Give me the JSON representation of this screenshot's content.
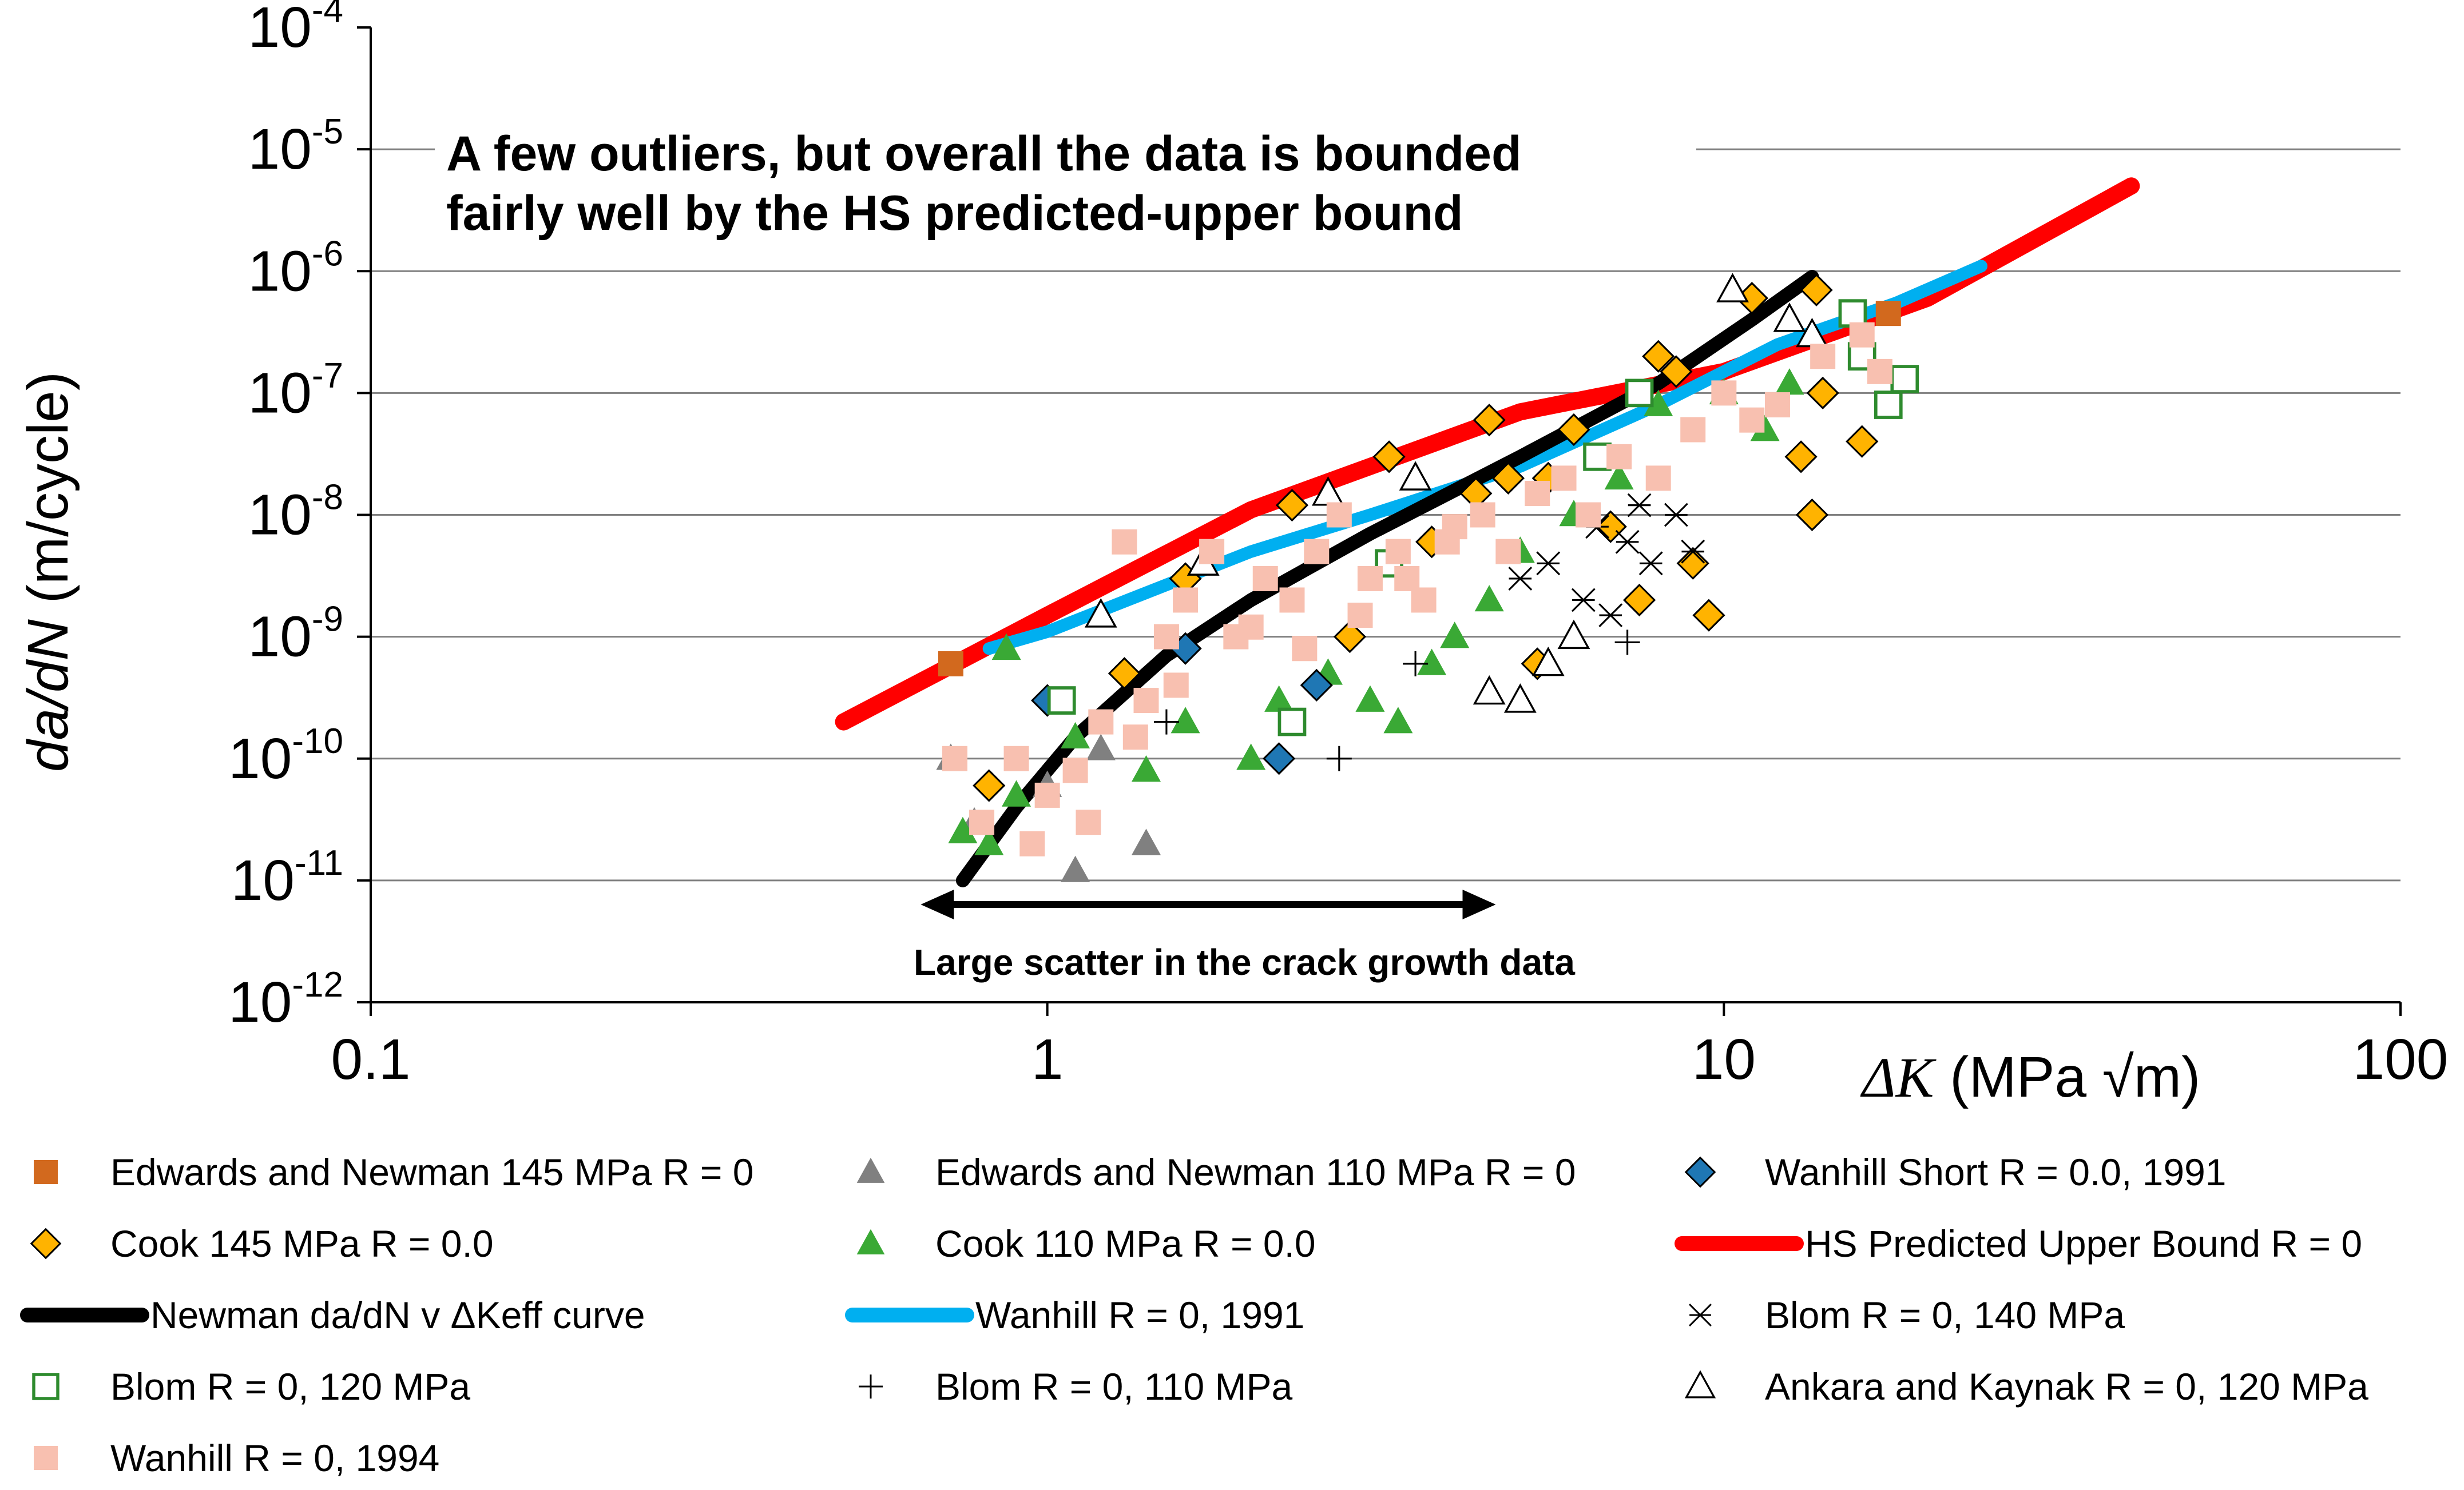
{
  "chart_data": {
    "type": "scatter",
    "xscale": "log",
    "yscale": "log",
    "xlim": [
      0.1,
      100
    ],
    "ylim": [
      1e-12,
      0.0001
    ],
    "x_ticks": [
      "0.1",
      "1",
      "10",
      "100"
    ],
    "y_ticks": [
      {
        "base": "10",
        "exp": "-12"
      },
      {
        "base": "10",
        "exp": "-11"
      },
      {
        "base": "10",
        "exp": "-10"
      },
      {
        "base": "10",
        "exp": "-9"
      },
      {
        "base": "10",
        "exp": "-8"
      },
      {
        "base": "10",
        "exp": "-7"
      },
      {
        "base": "10",
        "exp": "-6"
      },
      {
        "base": "10",
        "exp": "-5"
      },
      {
        "base": "10",
        "exp": "-4"
      }
    ],
    "ylabel_italic": "da/dN",
    "ylabel_rest": " (m/cycle)",
    "xlabel_symbol": "ΔK",
    "xlabel_rest": " (MPa √m)",
    "grid": "horizontal",
    "annotation_lines": [
      "A few outliers, but overall the data is bounded",
      "fairly well  by the HS predicted-upper bound"
    ],
    "scatter_note": "Large scatter in the crack growth data",
    "scatter_range_x": [
      0.65,
      4.6
    ],
    "series": [
      {
        "name": "HS Predicted Upper Bound R = 0",
        "kind": "line",
        "color": "#ff0000",
        "x": [
          0.5,
          1,
          2,
          5,
          10,
          20,
          40
        ],
        "y": [
          2e-10,
          1.5e-09,
          1.1e-08,
          7e-08,
          1.5e-07,
          6e-07,
          5e-06
        ]
      },
      {
        "name": "Wanhill R = 0, 1991",
        "kind": "line",
        "color": "#00aff0",
        "x": [
          0.82,
          1,
          2,
          3,
          5,
          8,
          12,
          18,
          24
        ],
        "y": [
          8e-10,
          1.1e-09,
          5e-09,
          1e-08,
          2.5e-08,
          8e-08,
          2.5e-07,
          5.5e-07,
          1.1e-06
        ]
      },
      {
        "name": "Newman da/dN v ΔKeff curve",
        "kind": "line",
        "color": "#000000",
        "x": [
          0.75,
          0.9,
          1.1,
          1.5,
          2,
          3,
          5,
          8,
          11,
          13.5
        ],
        "y": [
          1e-11,
          4e-11,
          1.5e-10,
          7e-10,
          2e-09,
          7e-09,
          3e-08,
          1.2e-07,
          4e-07,
          9e-07
        ]
      },
      {
        "name": "Edwards and Newman 145 MPa R = 0",
        "kind": "square",
        "color": "#d2691e",
        "x": [
          0.72,
          17.5
        ],
        "y": [
          6e-10,
          4.5e-07
        ]
      },
      {
        "name": "Edwards and Newman 110 MPa R = 0",
        "kind": "triangle",
        "color": "#808080",
        "x": [
          0.72,
          0.78,
          1.0,
          1.2,
          1.4,
          1.1
        ],
        "y": [
          1e-10,
          3e-11,
          6e-11,
          1.2e-10,
          2e-11,
          1.2e-11
        ]
      },
      {
        "name": "Wanhill Short R = 0.0, 1991",
        "kind": "diamond",
        "color": "#1f77b4",
        "x": [
          1.0,
          1.6,
          2.2,
          2.5
        ],
        "y": [
          3e-10,
          8e-10,
          1e-10,
          4e-10
        ]
      },
      {
        "name": "Cook 145 MPa R = 0.0",
        "kind": "diamond",
        "color": "#ffb300",
        "x": [
          0.82,
          1.3,
          2.3,
          3.2,
          4.5,
          4.8,
          5.3,
          6.0,
          7.5,
          8.0,
          8.5,
          9.5,
          9.0,
          11.0,
          13.5,
          13.0,
          13.7,
          16.0,
          14.0,
          2.8,
          3.7,
          1.6,
          4.3,
          5.5,
          6.8
        ],
        "y": [
          6e-11,
          5e-10,
          1.2e-08,
          3e-08,
          6e-08,
          2e-08,
          6e-10,
          5e-08,
          2e-09,
          2e-07,
          1.5e-07,
          1.5e-09,
          4e-09,
          6e-07,
          1e-08,
          3e-08,
          7e-07,
          4e-08,
          1e-07,
          1e-09,
          6e-09,
          3e-09,
          1.5e-08,
          2e-08,
          8e-09
        ]
      },
      {
        "name": "Cook 110 MPa R = 0.0",
        "kind": "triangle",
        "color": "#3aa935",
        "x": [
          0.75,
          0.82,
          0.87,
          1.1,
          1.6,
          2.0,
          2.6,
          3.0,
          3.3,
          3.7,
          4.0,
          5.0,
          6.0,
          7.0,
          8.0,
          10.0,
          11.5,
          12.5,
          0.9,
          1.4,
          2.2,
          4.5
        ],
        "y": [
          2.5e-11,
          2e-11,
          8e-10,
          1.5e-10,
          2e-10,
          1e-10,
          5e-10,
          3e-10,
          2e-10,
          6e-10,
          1e-09,
          5e-09,
          1e-08,
          2e-08,
          8e-08,
          1e-07,
          5e-08,
          1.2e-07,
          5e-11,
          8e-11,
          3e-10,
          2e-09
        ]
      },
      {
        "name": "Blom R = 0, 140 MPa",
        "kind": "asterisk",
        "color": "#000000",
        "x": [
          5.0,
          5.5,
          6.2,
          6.8,
          7.2,
          7.8,
          8.5,
          9.0,
          6.5,
          7.5
        ],
        "y": [
          3e-09,
          4e-09,
          2e-09,
          1.5e-09,
          6e-09,
          4e-09,
          1e-08,
          5e-09,
          8e-09,
          1.2e-08
        ]
      },
      {
        "name": "Blom R = 0, 120 MPa",
        "kind": "open-square",
        "color": "#2e8b2e",
        "x": [
          1.05,
          2.3,
          3.2,
          6.5,
          7.5,
          15.5,
          18.5,
          17.5,
          16.0
        ],
        "y": [
          3e-10,
          2e-10,
          4e-09,
          3e-08,
          1e-07,
          4.5e-07,
          1.3e-07,
          8e-08,
          2e-07
        ]
      },
      {
        "name": "Blom R = 0, 110 MPa",
        "kind": "plus",
        "color": "#000000",
        "x": [
          2.7,
          7.2,
          1.5,
          3.5
        ],
        "y": [
          1e-10,
          9e-10,
          2e-10,
          6e-10
        ]
      },
      {
        "name": "Ankara and Kaynak R = 0, 120 MPa",
        "kind": "open-triangle",
        "color": "#000000",
        "x": [
          1.2,
          2.6,
          4.5,
          5.0,
          5.5,
          6.0,
          10.3,
          12.5,
          13.5,
          3.5,
          1.7
        ],
        "y": [
          1.5e-09,
          1.5e-08,
          3.5e-10,
          3e-10,
          6e-10,
          1e-09,
          7e-07,
          4e-07,
          3e-07,
          2e-08,
          4e-09
        ]
      },
      {
        "name": "Wanhill R = 0, 1994",
        "kind": "square",
        "color": "#f8c0b0",
        "x": [
          0.73,
          0.8,
          0.95,
          1.0,
          1.1,
          1.2,
          1.3,
          1.4,
          1.5,
          1.6,
          1.75,
          1.9,
          2.1,
          2.3,
          2.5,
          2.7,
          3.0,
          3.3,
          3.6,
          4.0,
          4.4,
          4.8,
          5.3,
          5.8,
          6.3,
          7.0,
          8.0,
          9.0,
          10.0,
          11.0,
          12.0,
          14.0,
          16.0,
          17.0,
          1.35,
          1.55,
          2.0,
          2.4,
          2.9,
          3.4,
          3.9,
          0.9,
          1.15
        ],
        "y": [
          1e-10,
          3e-11,
          2e-11,
          5e-11,
          8e-11,
          2e-10,
          6e-09,
          3e-10,
          1e-09,
          2e-09,
          5e-09,
          1e-09,
          3e-09,
          2e-09,
          5e-09,
          1e-08,
          3e-09,
          5e-09,
          2e-09,
          8e-09,
          1e-08,
          5e-09,
          1.5e-08,
          2e-08,
          1e-08,
          3e-08,
          2e-08,
          5e-08,
          1e-07,
          6e-08,
          8e-08,
          2e-07,
          3e-07,
          1.5e-07,
          1.5e-10,
          4e-10,
          1.2e-09,
          8e-10,
          1.5e-09,
          3e-09,
          6e-09,
          1e-10,
          3e-11
        ]
      }
    ]
  },
  "legend": [
    {
      "label": "Edwards and Newman 145 MPa R = 0",
      "kind": "square",
      "color": "#d2691e"
    },
    {
      "label": "Edwards and Newman 110 MPa R = 0",
      "kind": "triangle",
      "color": "#808080"
    },
    {
      "label": "Wanhill Short R = 0.0, 1991",
      "kind": "diamond",
      "color": "#1f77b4"
    },
    {
      "label": "Cook 145 MPa R = 0.0",
      "kind": "diamond",
      "color": "#ffb300"
    },
    {
      "label": "Cook 110 MPa R = 0.0",
      "kind": "triangle",
      "color": "#3aa935"
    },
    {
      "label": "HS Predicted Upper Bound R = 0",
      "kind": "line",
      "color": "#ff0000"
    },
    {
      "label": "Newman da/dN v ΔKeff curve",
      "kind": "line",
      "color": "#000000"
    },
    {
      "label": "Wanhill R = 0, 1991",
      "kind": "line",
      "color": "#00aff0"
    },
    {
      "label": "Blom R = 0, 140 MPa",
      "kind": "asterisk",
      "color": "#000000"
    },
    {
      "label": "Blom R = 0, 120 MPa",
      "kind": "open-square",
      "color": "#2e8b2e"
    },
    {
      "label": "Blom R = 0, 110 MPa",
      "kind": "plus",
      "color": "#000000"
    },
    {
      "label": "Ankara and Kaynak R = 0, 120 MPa",
      "kind": "open-triangle",
      "color": "#000000"
    },
    {
      "label": "Wanhill R = 0, 1994",
      "kind": "square",
      "color": "#f8c0b0"
    }
  ]
}
